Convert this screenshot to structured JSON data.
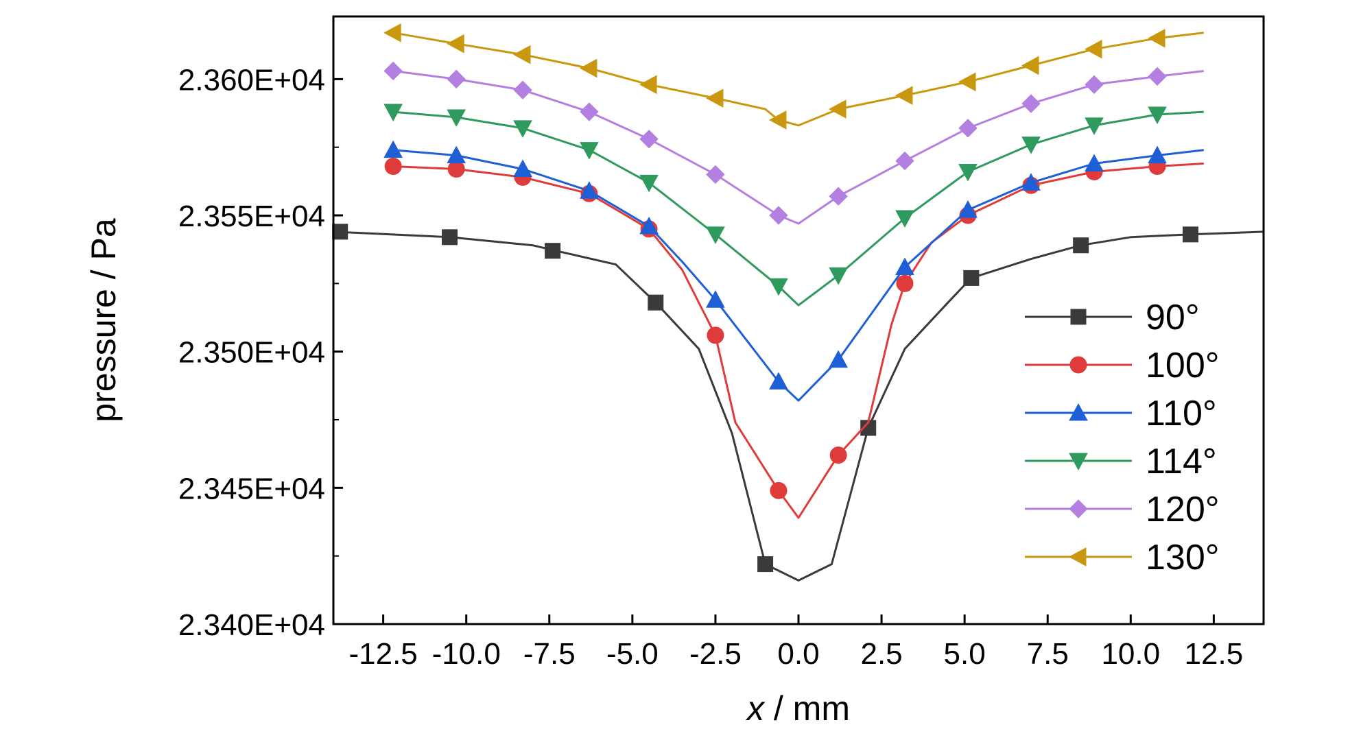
{
  "chart_data": {
    "type": "line",
    "xlabel_var": "x",
    "xlabel_unit": " / mm",
    "ylabel": "pressure / Pa",
    "xlim": [
      -14,
      14
    ],
    "ylim": [
      23400,
      23623
    ],
    "x_ticks": [
      -12.5,
      -10.0,
      -7.5,
      -5.0,
      -2.5,
      0.0,
      2.5,
      5.0,
      7.5,
      10.0,
      12.5
    ],
    "x_tick_labels": [
      "-12.5",
      "-10.0",
      "-7.5",
      "-5.0",
      "-2.5",
      "0.0",
      "2.5",
      "5.0",
      "7.5",
      "10.0",
      "12.5"
    ],
    "y_ticks": [
      23400,
      23450,
      23500,
      23550,
      23600
    ],
    "y_tick_labels": [
      "2.340E+04",
      "2.345E+04",
      "2.350E+04",
      "2.355E+04",
      "2.360E+04"
    ],
    "legend_position": "right",
    "series": [
      {
        "name": "90°",
        "color": "#3a3a3a",
        "marker": "square",
        "points": [
          [
            -14.0,
            23544
          ],
          [
            -10.5,
            23542
          ],
          [
            -8.0,
            23539
          ],
          [
            -7.3,
            23537
          ],
          [
            -5.5,
            23532
          ],
          [
            -4.3,
            23518
          ],
          [
            -3.0,
            23501
          ],
          [
            -2.0,
            23470
          ],
          [
            -1.0,
            23422
          ],
          [
            0.0,
            23416
          ],
          [
            1.0,
            23422
          ],
          [
            2.1,
            23472
          ],
          [
            3.2,
            23501
          ],
          [
            4.5,
            23518
          ],
          [
            5.2,
            23527
          ],
          [
            7.0,
            23534
          ],
          [
            8.5,
            23539
          ],
          [
            10.0,
            23542
          ],
          [
            11.8,
            23543
          ],
          [
            14.0,
            23544
          ]
        ],
        "markers": [
          [
            -13.8,
            23544
          ],
          [
            -10.5,
            23542
          ],
          [
            -7.4,
            23537
          ],
          [
            -4.3,
            23518
          ],
          [
            -1.0,
            23422
          ],
          [
            2.1,
            23472
          ],
          [
            5.2,
            23527
          ],
          [
            8.5,
            23539
          ],
          [
            11.8,
            23543
          ]
        ]
      },
      {
        "name": "100°",
        "color": "#e03b3b",
        "marker": "circle",
        "points": [
          [
            -12.2,
            23568
          ],
          [
            -10.3,
            23567
          ],
          [
            -8.3,
            23564
          ],
          [
            -6.3,
            23558
          ],
          [
            -4.5,
            23545
          ],
          [
            -3.5,
            23530
          ],
          [
            -2.5,
            23506
          ],
          [
            -1.9,
            23474
          ],
          [
            -0.6,
            23449
          ],
          [
            0.0,
            23439
          ],
          [
            1.2,
            23462
          ],
          [
            2.1,
            23474
          ],
          [
            2.8,
            23510
          ],
          [
            3.2,
            23525
          ],
          [
            4.0,
            23540
          ],
          [
            5.1,
            23550
          ],
          [
            7.0,
            23561
          ],
          [
            8.9,
            23566
          ],
          [
            10.8,
            23568
          ],
          [
            12.2,
            23569
          ]
        ],
        "markers": [
          [
            -12.2,
            23568
          ],
          [
            -10.3,
            23567
          ],
          [
            -8.3,
            23564
          ],
          [
            -6.3,
            23558
          ],
          [
            -4.5,
            23545
          ],
          [
            -2.5,
            23506
          ],
          [
            -0.6,
            23449
          ],
          [
            1.2,
            23462
          ],
          [
            3.2,
            23525
          ],
          [
            5.1,
            23550
          ],
          [
            7.0,
            23561
          ],
          [
            8.9,
            23566
          ],
          [
            10.8,
            23568
          ]
        ]
      },
      {
        "name": "110°",
        "color": "#1f5fd6",
        "marker": "triangle-up",
        "points": [
          [
            -12.2,
            23574
          ],
          [
            -10.3,
            23572
          ],
          [
            -8.3,
            23567
          ],
          [
            -6.3,
            23559
          ],
          [
            -4.5,
            23546
          ],
          [
            -3.5,
            23533
          ],
          [
            -2.5,
            23519
          ],
          [
            -0.6,
            23489
          ],
          [
            0.0,
            23482
          ],
          [
            1.2,
            23497
          ],
          [
            3.2,
            23531
          ],
          [
            5.1,
            23552
          ],
          [
            7.0,
            23562
          ],
          [
            8.9,
            23569
          ],
          [
            10.8,
            23572
          ],
          [
            12.2,
            23574
          ]
        ],
        "markers": [
          [
            -12.2,
            23574
          ],
          [
            -10.3,
            23572
          ],
          [
            -8.3,
            23567
          ],
          [
            -6.3,
            23559
          ],
          [
            -4.5,
            23546
          ],
          [
            -2.5,
            23519
          ],
          [
            -0.6,
            23489
          ],
          [
            1.2,
            23497
          ],
          [
            3.2,
            23531
          ],
          [
            5.1,
            23552
          ],
          [
            7.0,
            23562
          ],
          [
            8.9,
            23569
          ],
          [
            10.8,
            23572
          ]
        ]
      },
      {
        "name": "114°",
        "color": "#2e9a5e",
        "marker": "triangle-down",
        "points": [
          [
            -12.2,
            23588
          ],
          [
            -10.3,
            23586
          ],
          [
            -8.3,
            23582
          ],
          [
            -6.3,
            23574
          ],
          [
            -4.5,
            23562
          ],
          [
            -2.5,
            23543
          ],
          [
            -0.6,
            23524
          ],
          [
            0.0,
            23517
          ],
          [
            1.2,
            23528
          ],
          [
            3.2,
            23549
          ],
          [
            5.1,
            23566
          ],
          [
            7.0,
            23576
          ],
          [
            8.9,
            23583
          ],
          [
            10.8,
            23587
          ],
          [
            12.2,
            23588
          ]
        ],
        "markers": [
          [
            -12.2,
            23588
          ],
          [
            -10.3,
            23586
          ],
          [
            -8.3,
            23582
          ],
          [
            -6.3,
            23574
          ],
          [
            -4.5,
            23562
          ],
          [
            -2.5,
            23543
          ],
          [
            -0.6,
            23524
          ],
          [
            1.2,
            23528
          ],
          [
            3.2,
            23549
          ],
          [
            5.1,
            23566
          ],
          [
            7.0,
            23576
          ],
          [
            8.9,
            23583
          ],
          [
            10.8,
            23587
          ]
        ]
      },
      {
        "name": "120°",
        "color": "#b37fe0",
        "marker": "diamond",
        "points": [
          [
            -12.2,
            23603
          ],
          [
            -10.3,
            23600
          ],
          [
            -8.3,
            23596
          ],
          [
            -6.3,
            23588
          ],
          [
            -4.5,
            23578
          ],
          [
            -2.5,
            23565
          ],
          [
            -0.6,
            23550
          ],
          [
            0.0,
            23547
          ],
          [
            1.2,
            23557
          ],
          [
            3.2,
            23570
          ],
          [
            5.1,
            23582
          ],
          [
            7.0,
            23591
          ],
          [
            8.9,
            23598
          ],
          [
            10.8,
            23601
          ],
          [
            12.2,
            23603
          ]
        ],
        "markers": [
          [
            -12.2,
            23603
          ],
          [
            -10.3,
            23600
          ],
          [
            -8.3,
            23596
          ],
          [
            -6.3,
            23588
          ],
          [
            -4.5,
            23578
          ],
          [
            -2.5,
            23565
          ],
          [
            -0.6,
            23550
          ],
          [
            1.2,
            23557
          ],
          [
            3.2,
            23570
          ],
          [
            5.1,
            23582
          ],
          [
            7.0,
            23591
          ],
          [
            8.9,
            23598
          ],
          [
            10.8,
            23601
          ]
        ]
      },
      {
        "name": "130°",
        "color": "#c9980f",
        "marker": "triangle-left",
        "points": [
          [
            -12.2,
            23617
          ],
          [
            -10.3,
            23613
          ],
          [
            -8.3,
            23609
          ],
          [
            -6.3,
            23604
          ],
          [
            -4.5,
            23598
          ],
          [
            -2.5,
            23593
          ],
          [
            -1.0,
            23589
          ],
          [
            -0.6,
            23585
          ],
          [
            0.0,
            23583
          ],
          [
            1.2,
            23589
          ],
          [
            3.2,
            23594
          ],
          [
            5.1,
            23599
          ],
          [
            7.0,
            23605
          ],
          [
            8.9,
            23611
          ],
          [
            10.8,
            23615
          ],
          [
            12.2,
            23617
          ]
        ],
        "markers": [
          [
            -12.2,
            23617
          ],
          [
            -10.3,
            23613
          ],
          [
            -8.3,
            23609
          ],
          [
            -6.3,
            23604
          ],
          [
            -4.5,
            23598
          ],
          [
            -2.5,
            23593
          ],
          [
            -0.6,
            23585
          ],
          [
            1.2,
            23589
          ],
          [
            3.2,
            23594
          ],
          [
            5.1,
            23599
          ],
          [
            7.0,
            23605
          ],
          [
            8.9,
            23611
          ],
          [
            10.8,
            23615
          ]
        ]
      }
    ]
  }
}
